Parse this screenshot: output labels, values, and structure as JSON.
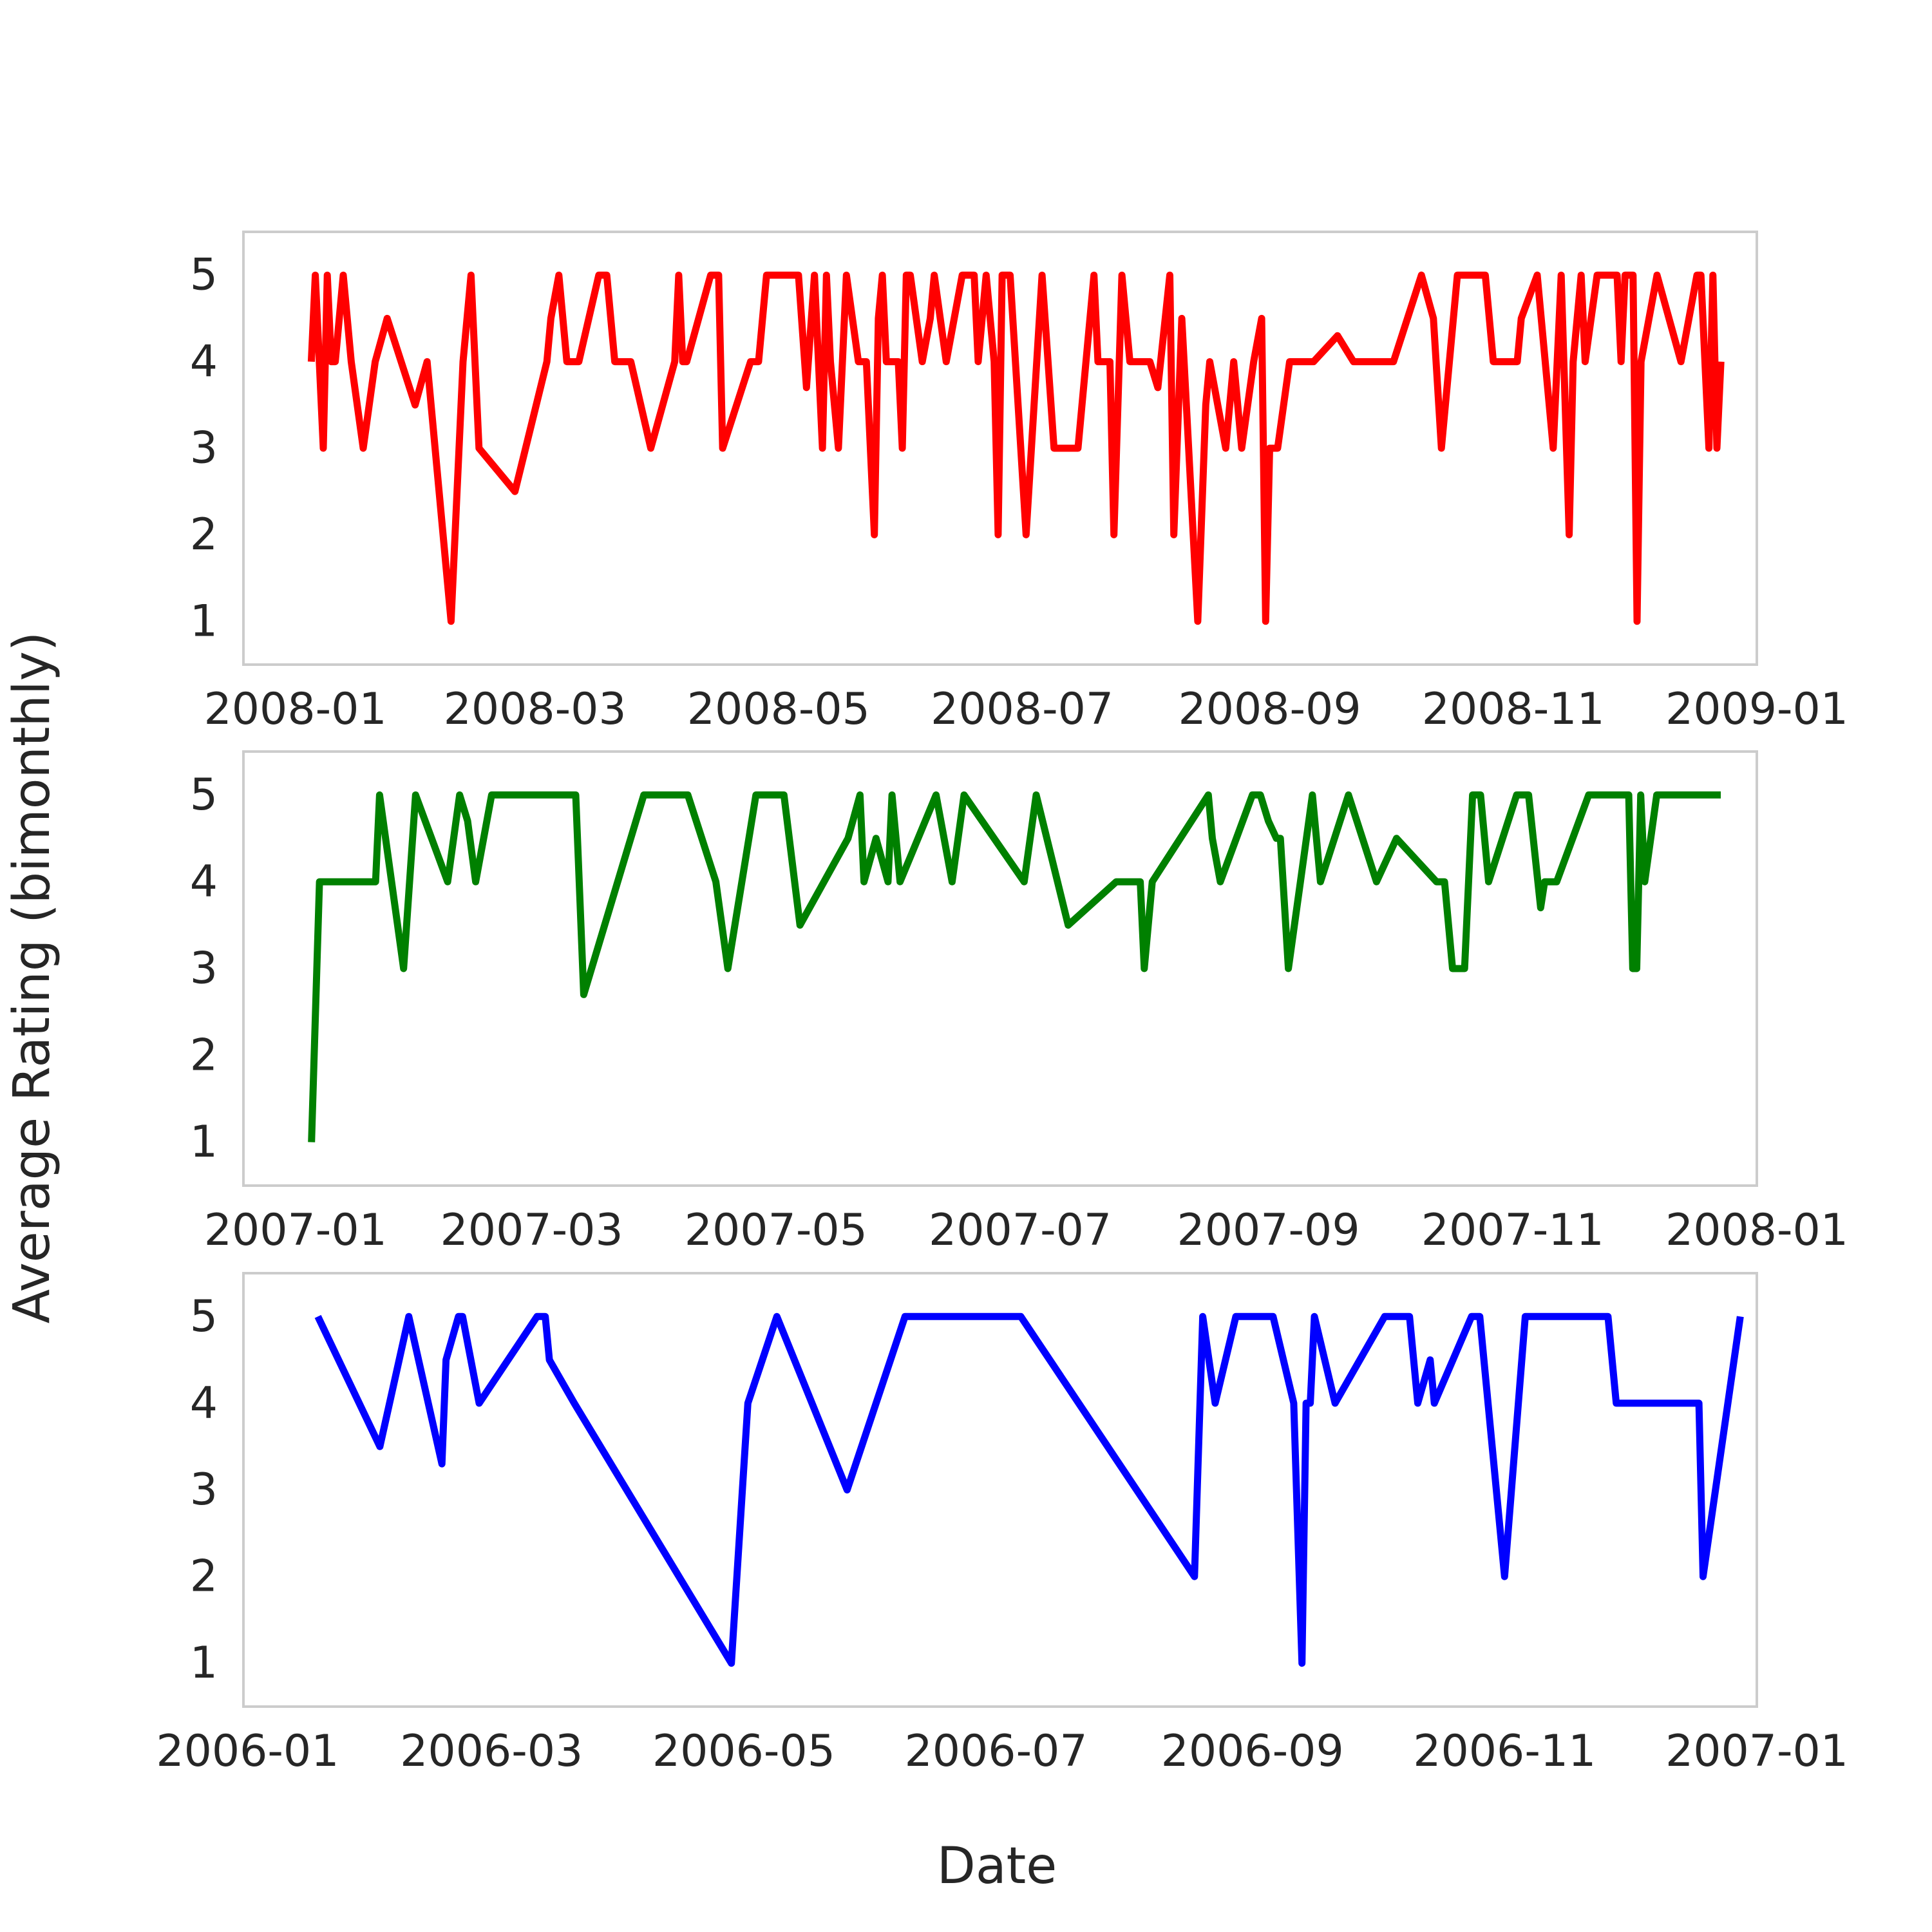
{
  "figure": {
    "ylabel": "Average Rating (bimonthly)",
    "xlabel": "Date"
  },
  "chart_data": [
    {
      "type": "line",
      "color": "#ff0000",
      "ylim": [
        0.5,
        5.5
      ],
      "yticks": [
        1,
        2,
        3,
        4,
        5
      ],
      "xlim": [
        "2007-12-19",
        "2009-01-01"
      ],
      "xticks": [
        "2008-01",
        "2008-03",
        "2008-05",
        "2008-07",
        "2008-09",
        "2008-11",
        "2009-01"
      ],
      "series": [
        {
          "x": [
            "2008-01-05",
            "2008-01-06",
            "2008-01-07",
            "2008-01-08",
            "2008-01-09",
            "2008-01-10",
            "2008-01-11",
            "2008-01-13",
            "2008-01-15",
            "2008-01-18",
            "2008-01-21",
            "2008-01-24",
            "2008-01-31",
            "2008-02-03",
            "2008-02-09",
            "2008-02-12",
            "2008-02-14",
            "2008-02-15",
            "2008-02-16",
            "2008-02-25",
            "2008-03-04",
            "2008-03-05",
            "2008-03-07",
            "2008-03-09",
            "2008-03-12",
            "2008-03-17",
            "2008-03-19",
            "2008-03-21",
            "2008-03-25",
            "2008-03-30",
            "2008-04-05",
            "2008-04-06",
            "2008-04-07",
            "2008-04-08",
            "2008-04-14",
            "2008-04-16",
            "2008-04-17",
            "2008-04-24",
            "2008-04-26",
            "2008-04-28",
            "2008-05-01",
            "2008-05-06",
            "2008-05-08",
            "2008-05-10",
            "2008-05-11",
            "2008-05-12",
            "2008-05-13",
            "2008-05-14",
            "2008-05-16",
            "2008-05-18",
            "2008-05-21",
            "2008-05-22",
            "2008-05-23",
            "2008-05-25",
            "2008-05-26",
            "2008-05-27",
            "2008-05-28",
            "2008-05-31",
            "2008-06-01",
            "2008-06-02",
            "2008-06-03",
            "2008-06-06",
            "2008-06-08",
            "2008-06-09",
            "2008-06-12",
            "2008-06-16",
            "2008-06-19",
            "2008-06-20",
            "2008-06-22",
            "2008-06-24",
            "2008-06-25",
            "2008-06-26",
            "2008-06-28",
            "2008-06-30",
            "2008-07-02",
            "2008-07-06",
            "2008-07-09",
            "2008-07-12",
            "2008-07-15",
            "2008-07-19",
            "2008-07-20",
            "2008-07-23",
            "2008-07-24",
            "2008-07-26",
            "2008-07-28",
            "2008-07-29",
            "2008-07-30",
            "2008-08-02",
            "2008-08-04",
            "2008-08-07",
            "2008-08-08",
            "2008-08-10",
            "2008-08-14",
            "2008-08-16",
            "2008-08-17",
            "2008-08-21",
            "2008-08-23",
            "2008-08-25",
            "2008-08-28",
            "2008-08-30",
            "2008-08-31",
            "2008-09-01",
            "2008-09-03",
            "2008-09-06",
            "2008-09-09",
            "2008-09-11",
            "2008-09-12",
            "2008-09-18",
            "2008-09-22",
            "2008-10-02",
            "2008-10-09",
            "2008-10-12",
            "2008-10-14",
            "2008-10-18",
            "2008-10-25",
            "2008-10-27",
            "2008-10-30",
            "2008-11-02",
            "2008-11-03",
            "2008-11-07",
            "2008-11-11",
            "2008-11-13",
            "2008-11-15",
            "2008-11-16",
            "2008-11-18",
            "2008-11-19",
            "2008-11-22",
            "2008-11-27",
            "2008-11-28",
            "2008-11-29",
            "2008-12-01",
            "2008-12-02",
            "2008-12-03",
            "2008-12-07",
            "2008-12-13",
            "2008-12-17",
            "2008-12-18",
            "2008-12-19",
            "2008-12-20",
            "2008-12-21",
            "2008-12-22",
            "2008-12-23"
          ],
          "y": [
            4,
            5,
            4,
            3,
            5,
            4,
            4,
            5,
            4,
            3,
            4,
            4.5,
            3.5,
            4,
            1,
            4,
            5,
            4,
            3,
            2.5,
            4,
            4.5,
            5,
            4,
            4,
            5,
            5,
            4,
            4,
            3,
            4,
            5,
            4,
            4,
            5,
            5,
            3,
            4,
            4,
            5,
            5,
            5,
            3.7,
            5,
            4,
            3,
            5,
            4,
            3,
            5,
            4,
            4,
            4,
            2,
            4.5,
            5,
            4,
            4,
            3,
            5,
            5,
            4,
            4.5,
            5,
            4,
            5,
            5,
            4,
            5,
            4,
            2,
            5,
            5,
            3.5,
            2,
            5,
            3,
            3,
            3,
            5,
            4,
            4,
            2,
            5,
            4,
            4,
            4,
            4,
            3.7,
            5,
            2,
            4.5,
            1,
            3.5,
            4,
            3,
            4,
            3,
            4,
            4.5,
            1,
            3,
            3,
            4,
            4,
            4,
            4,
            4.3,
            4,
            4,
            5,
            4.5,
            3,
            5,
            5,
            4,
            4,
            4,
            4.5,
            5,
            3,
            5,
            2,
            4,
            5,
            4,
            5,
            5,
            4,
            5,
            5,
            1,
            4,
            5,
            4,
            5,
            5,
            4,
            3,
            5,
            3,
            4
          ]
        }
      ]
    },
    {
      "type": "line",
      "color": "#008000",
      "ylim": [
        0.5,
        5.5
      ],
      "yticks": [
        1,
        2,
        3,
        4,
        5
      ],
      "xlim": [
        "2006-12-19",
        "2008-01-01"
      ],
      "xticks": [
        "2007-01",
        "2007-03",
        "2007-05",
        "2007-07",
        "2007-09",
        "2007-11",
        "2008-01"
      ],
      "series": [
        {
          "x": [
            "2007-01-05",
            "2007-01-07",
            "2007-01-21",
            "2007-01-22",
            "2007-01-28",
            "2007-01-31",
            "2007-02-08",
            "2007-02-11",
            "2007-02-13",
            "2007-02-15",
            "2007-02-19",
            "2007-03-12",
            "2007-03-14",
            "2007-03-29",
            "2007-04-09",
            "2007-04-16",
            "2007-04-19",
            "2007-04-26",
            "2007-05-03",
            "2007-05-07",
            "2007-05-19",
            "2007-05-22",
            "2007-05-23",
            "2007-05-26",
            "2007-05-29",
            "2007-05-30",
            "2007-06-01",
            "2007-06-10",
            "2007-06-14",
            "2007-06-17",
            "2007-07-02",
            "2007-07-05",
            "2007-07-13",
            "2007-07-25",
            "2007-07-27",
            "2007-07-31",
            "2007-08-01",
            "2007-08-03",
            "2007-08-17",
            "2007-08-18",
            "2007-08-20",
            "2007-08-28",
            "2007-08-30",
            "2007-09-01",
            "2007-09-03",
            "2007-09-04",
            "2007-09-06",
            "2007-09-09",
            "2007-09-12",
            "2007-09-14",
            "2007-09-21",
            "2007-09-28",
            "2007-10-03",
            "2007-10-13",
            "2007-10-14",
            "2007-10-15",
            "2007-10-17",
            "2007-10-20",
            "2007-10-22",
            "2007-10-24",
            "2007-10-26",
            "2007-11-02",
            "2007-11-05",
            "2007-11-08",
            "2007-11-09",
            "2007-11-12",
            "2007-11-20",
            "2007-11-30",
            "2007-12-01",
            "2007-12-02",
            "2007-12-03",
            "2007-12-04",
            "2007-12-07",
            "2007-12-13",
            "2007-12-23"
          ],
          "y": [
            1,
            4,
            4,
            5,
            3,
            5,
            4,
            5,
            4.7,
            4,
            5,
            5,
            2.7,
            5,
            5,
            4,
            3,
            5,
            5,
            3.5,
            4.5,
            5,
            4,
            4.5,
            4,
            5,
            4,
            5,
            4,
            5,
            4,
            5,
            3.5,
            4,
            4,
            4,
            3,
            4,
            5,
            4.5,
            4,
            5,
            5,
            4.7,
            4.5,
            4.5,
            3,
            4,
            5,
            4,
            5,
            4,
            4.5,
            4,
            4,
            4,
            3,
            3,
            5,
            5,
            4,
            5,
            5,
            3.7,
            4,
            4,
            5,
            5,
            3,
            3,
            5,
            4,
            5,
            5,
            5
          ]
        }
      ]
    },
    {
      "type": "line",
      "color": "#0000ff",
      "ylim": [
        0.5,
        5.5
      ],
      "yticks": [
        1,
        2,
        3,
        4,
        5
      ],
      "xlim": [
        "2005-12-31",
        "2007-01-01"
      ],
      "xticks": [
        "2006-01",
        "2006-03",
        "2006-05",
        "2006-07",
        "2006-09",
        "2006-11",
        "2007-01"
      ],
      "series": [
        {
          "x": [
            "2006-01-18",
            "2006-02-02",
            "2006-02-09",
            "2006-02-17",
            "2006-02-18",
            "2006-02-21",
            "2006-02-22",
            "2006-02-26",
            "2006-03-12",
            "2006-03-14",
            "2006-03-15",
            "2006-03-21",
            "2006-04-28",
            "2006-05-02",
            "2006-05-09",
            "2006-05-26",
            "2006-06-09",
            "2006-07-07",
            "2006-08-18",
            "2006-08-20",
            "2006-08-23",
            "2006-08-28",
            "2006-09-06",
            "2006-09-11",
            "2006-09-13",
            "2006-09-14",
            "2006-09-15",
            "2006-09-16",
            "2006-09-21",
            "2006-10-03",
            "2006-10-09",
            "2006-10-11",
            "2006-10-14",
            "2006-10-15",
            "2006-10-24",
            "2006-10-26",
            "2006-11-01",
            "2006-11-06",
            "2006-11-26",
            "2006-11-28",
            "2006-12-10",
            "2006-12-18",
            "2006-12-19",
            "2006-12-28"
          ],
          "y": [
            5,
            3.5,
            5,
            3.3,
            4.5,
            5,
            5,
            4,
            5,
            5,
            4.5,
            4,
            1,
            4,
            5,
            3,
            5,
            5,
            2,
            5,
            4,
            5,
            5,
            4,
            1,
            4,
            4,
            5,
            4,
            5,
            5,
            4,
            4.5,
            4,
            5,
            5,
            2,
            5,
            5,
            4,
            4,
            4,
            2,
            5
          ]
        }
      ]
    }
  ]
}
